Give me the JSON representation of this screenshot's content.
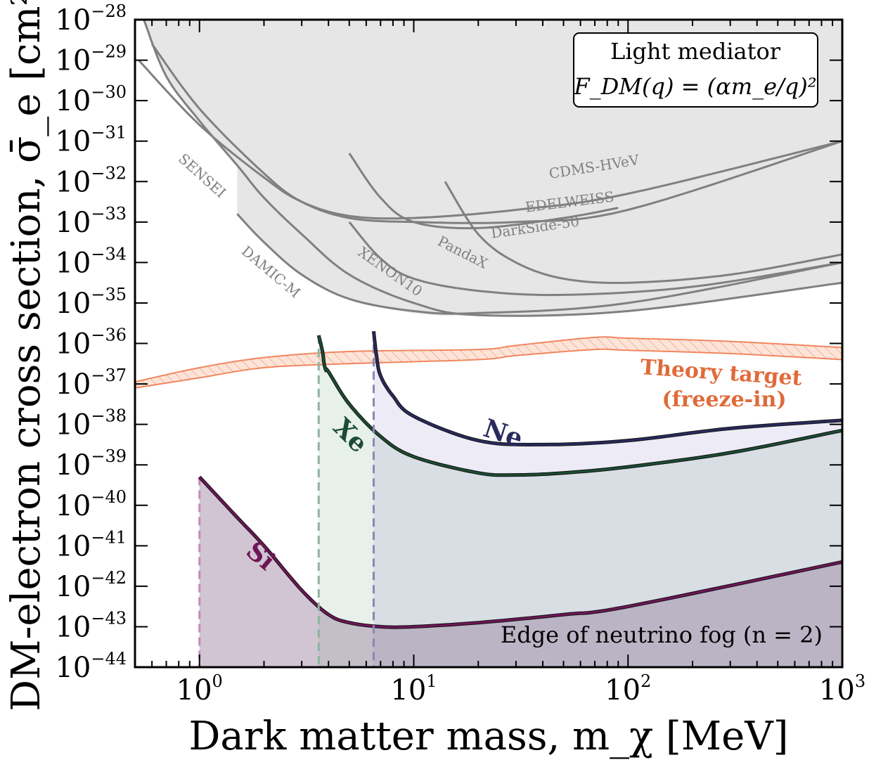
{
  "chart_data": {
    "type": "line",
    "xscale": "log",
    "yscale": "log",
    "xlim": [
      0.5,
      1000
    ],
    "ylim": [
      1e-44,
      1e-28
    ],
    "xlabel": "Dark matter mass, m_χ [MeV]",
    "ylabel": "DM-electron cross section, σ̄_e [cm²]",
    "x_ticks": [
      {
        "value": 1,
        "base": "10",
        "exp": "0"
      },
      {
        "value": 10,
        "base": "10",
        "exp": "1"
      },
      {
        "value": 100,
        "base": "10",
        "exp": "2"
      },
      {
        "value": 1000,
        "base": "10",
        "exp": "3"
      }
    ],
    "y_ticks": [
      {
        "value": -28,
        "base": "10",
        "exp": "−28"
      },
      {
        "value": -29,
        "base": "10",
        "exp": "−29"
      },
      {
        "value": -30,
        "base": "10",
        "exp": "−30"
      },
      {
        "value": -31,
        "base": "10",
        "exp": "−31"
      },
      {
        "value": -32,
        "base": "10",
        "exp": "−32"
      },
      {
        "value": -33,
        "base": "10",
        "exp": "−33"
      },
      {
        "value": -34,
        "base": "10",
        "exp": "−34"
      },
      {
        "value": -35,
        "base": "10",
        "exp": "−35"
      },
      {
        "value": -36,
        "base": "10",
        "exp": "−36"
      },
      {
        "value": -37,
        "base": "10",
        "exp": "−37"
      },
      {
        "value": -38,
        "base": "10",
        "exp": "−38"
      },
      {
        "value": -39,
        "base": "10",
        "exp": "−39"
      },
      {
        "value": -40,
        "base": "10",
        "exp": "−40"
      },
      {
        "value": -41,
        "base": "10",
        "exp": "−41"
      },
      {
        "value": -42,
        "base": "10",
        "exp": "−42"
      },
      {
        "value": -43,
        "base": "10",
        "exp": "−43"
      },
      {
        "value": -44,
        "base": "10",
        "exp": "−44"
      }
    ],
    "annotation_box": {
      "line1": "Light mediator",
      "line2": "F_DM(q) = (αm_e/q)²"
    },
    "fog_label": "Edge of neutrino fog (n = 2)",
    "theory_label": {
      "line1": "Theory target",
      "line2": "(freeze-in)"
    },
    "colors": {
      "excluded_fill": "#e6e6e6",
      "excluded_line": "#808080",
      "theory": "#f0875f",
      "theory_text": "#e06a3a",
      "Si": "#6e1657",
      "Xe": "#1c4c33",
      "Ne": "#2a2a5e",
      "fog_fill": "#c9c4cf"
    },
    "excluded_experiments": [
      {
        "name": "SENSEI",
        "points": [
          [
            0.55,
            -28.0
          ],
          [
            0.7,
            -29.4
          ],
          [
            1.0,
            -30.5
          ],
          [
            1.5,
            -31.6
          ],
          [
            2.0,
            -32.4
          ],
          [
            3.0,
            -33.3
          ],
          [
            5.0,
            -34.3
          ],
          [
            10.0,
            -35.0
          ],
          [
            20.0,
            -35.3
          ],
          [
            100.0,
            -35.2
          ],
          [
            1000.0,
            -34.5
          ]
        ]
      },
      {
        "name": "DAMIC-M",
        "points": [
          [
            1.5,
            -32.8
          ],
          [
            2.0,
            -33.5
          ],
          [
            3.0,
            -34.3
          ],
          [
            5.0,
            -34.9
          ],
          [
            10.0,
            -35.2
          ],
          [
            20.0,
            -35.25
          ],
          [
            100.0,
            -35.0
          ],
          [
            1000.0,
            -34.0
          ]
        ]
      },
      {
        "name": "XENON10",
        "points": [
          [
            5.0,
            -33.0
          ],
          [
            7.0,
            -33.9
          ],
          [
            10.0,
            -34.4
          ],
          [
            20.0,
            -34.7
          ],
          [
            50.0,
            -34.8
          ],
          [
            200.0,
            -34.6
          ],
          [
            1000.0,
            -34.0
          ]
        ]
      },
      {
        "name": "PandaX",
        "points": [
          [
            14.0,
            -32.0
          ],
          [
            20.0,
            -33.3
          ],
          [
            30.0,
            -34.0
          ],
          [
            50.0,
            -34.4
          ],
          [
            100.0,
            -34.5
          ],
          [
            300.0,
            -34.3
          ],
          [
            1000.0,
            -33.8
          ]
        ]
      },
      {
        "name": "DarkSide-50",
        "points": [
          [
            0.6,
            -28.6
          ],
          [
            1.0,
            -30.2
          ],
          [
            2.0,
            -31.8
          ],
          [
            3.0,
            -32.5
          ],
          [
            5.0,
            -32.9
          ],
          [
            10.0,
            -33.0
          ],
          [
            30.0,
            -33.0
          ],
          [
            100.0,
            -32.7
          ],
          [
            1000.0,
            -31.0
          ]
        ]
      },
      {
        "name": "EDELWEISS",
        "points": [
          [
            5.0,
            -31.3
          ],
          [
            7.0,
            -32.4
          ],
          [
            10.0,
            -33.0
          ],
          [
            20.0,
            -33.15
          ],
          [
            50.0,
            -32.9
          ],
          [
            90.0,
            -32.65
          ]
        ]
      },
      {
        "name": "CDMS-HVeV",
        "points": [
          [
            0.52,
            -29.0
          ],
          [
            1.0,
            -30.6
          ],
          [
            2.0,
            -31.9
          ],
          [
            3.0,
            -32.5
          ],
          [
            5.0,
            -32.85
          ],
          [
            10.0,
            -32.9
          ],
          [
            30.0,
            -32.7
          ],
          [
            100.0,
            -32.3
          ],
          [
            1000.0,
            -31.0
          ]
        ]
      }
    ],
    "theory_band": {
      "upper": [
        [
          0.5,
          -36.95
        ],
        [
          1.0,
          -36.6
        ],
        [
          2.0,
          -36.35
        ],
        [
          5.0,
          -36.2
        ],
        [
          20.0,
          -36.15
        ],
        [
          30.0,
          -36.05
        ],
        [
          70.0,
          -35.85
        ],
        [
          100.0,
          -35.87
        ],
        [
          300.0,
          -35.95
        ],
        [
          1000.0,
          -36.1
        ]
      ],
      "lower": [
        [
          0.5,
          -37.1
        ],
        [
          1.0,
          -36.85
        ],
        [
          2.0,
          -36.6
        ],
        [
          5.0,
          -36.5
        ],
        [
          20.0,
          -36.4
        ],
        [
          30.0,
          -36.3
        ],
        [
          70.0,
          -36.15
        ],
        [
          100.0,
          -36.17
        ],
        [
          300.0,
          -36.25
        ],
        [
          1000.0,
          -36.4
        ]
      ]
    },
    "series": [
      {
        "name": "Si",
        "start_mass": 1.0,
        "points": [
          [
            1.0,
            -39.3
          ],
          [
            1.5,
            -40.3
          ],
          [
            2.0,
            -41.0
          ],
          [
            3.0,
            -42.1
          ],
          [
            4.0,
            -42.7
          ],
          [
            5.0,
            -42.9
          ],
          [
            7.0,
            -43.0
          ],
          [
            10.0,
            -43.0
          ],
          [
            20.0,
            -42.9
          ],
          [
            50.0,
            -42.7
          ],
          [
            100.0,
            -42.5
          ],
          [
            1000.0,
            -41.4
          ]
        ]
      },
      {
        "name": "Xe",
        "start_mass": 3.6,
        "points": [
          [
            3.6,
            -35.8
          ],
          [
            3.75,
            -36.2
          ],
          [
            3.85,
            -36.6
          ],
          [
            4.0,
            -36.7
          ],
          [
            5.0,
            -37.5
          ],
          [
            7.0,
            -38.3
          ],
          [
            10.0,
            -38.8
          ],
          [
            20.0,
            -39.2
          ],
          [
            30.0,
            -39.25
          ],
          [
            50.0,
            -39.2
          ],
          [
            100.0,
            -39.05
          ],
          [
            300.0,
            -38.7
          ],
          [
            1000.0,
            -38.15
          ]
        ]
      },
      {
        "name": "Ne",
        "start_mass": 6.5,
        "points": [
          [
            6.5,
            -35.7
          ],
          [
            6.7,
            -36.3
          ],
          [
            7.0,
            -36.8
          ],
          [
            8.0,
            -37.3
          ],
          [
            10.0,
            -37.8
          ],
          [
            20.0,
            -38.4
          ],
          [
            40.0,
            -38.5
          ],
          [
            100.0,
            -38.4
          ],
          [
            300.0,
            -38.1
          ],
          [
            1000.0,
            -37.9
          ]
        ]
      }
    ]
  }
}
